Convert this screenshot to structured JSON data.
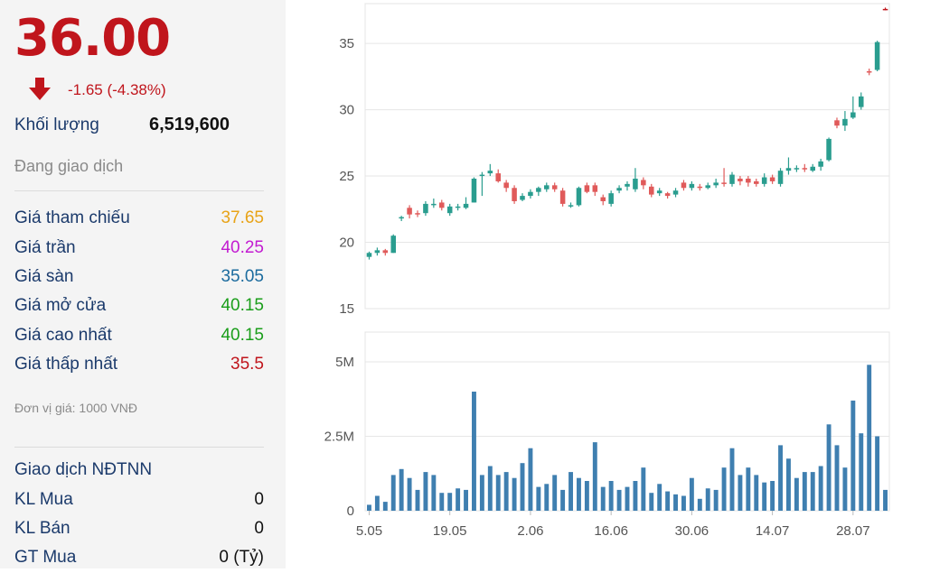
{
  "quote": {
    "price": "36.00",
    "change": "-1.65 (-4.38%)",
    "volume_label": "Khối lượng",
    "volume_value": "6,519,600",
    "status": "Đang giao dịch",
    "arrow_icon": "down-arrow-icon"
  },
  "price_rows": [
    {
      "label": "Giá tham chiếu",
      "value": "37.65",
      "color": "#e8a317"
    },
    {
      "label": "Giá trần",
      "value": "40.25",
      "color": "#c21bd1"
    },
    {
      "label": "Giá sàn",
      "value": "35.05",
      "color": "#1b6b9e"
    },
    {
      "label": "Giá mở cửa",
      "value": "40.15",
      "color": "#1a9e1a"
    },
    {
      "label": "Giá cao nhất",
      "value": "40.15",
      "color": "#1a9e1a"
    },
    {
      "label": "Giá thấp nhất",
      "value": "35.5",
      "color": "#c0151c"
    }
  ],
  "unit_note": "Đơn vị giá: 1000 VNĐ",
  "foreign": {
    "title": "Giao dịch NĐTNN",
    "rows": [
      {
        "label": "KL Mua",
        "value": "0"
      },
      {
        "label": "KL Bán",
        "value": "0"
      },
      {
        "label": "GT Mua",
        "value": "0 (Tỷ)"
      }
    ]
  },
  "colors": {
    "up": "#2a9d8f",
    "down": "#e05a5a",
    "volume": "#3f7fb0",
    "last": "#c0151c"
  },
  "chart_data": [
    {
      "type": "candlestick",
      "y_ticks": [
        "35",
        "30",
        "25",
        "20",
        "15"
      ],
      "ylim": [
        15,
        38
      ],
      "x_ticks": [
        "5.05",
        "19.05",
        "2.06",
        "16.06",
        "30.06",
        "14.07",
        "28.07"
      ],
      "candles": [
        [
          18.9,
          19.2,
          18.7,
          19.3
        ],
        [
          19.2,
          19.4,
          19.0,
          19.6
        ],
        [
          19.4,
          19.2,
          19.0,
          19.5
        ],
        [
          19.2,
          20.5,
          19.2,
          20.6
        ],
        [
          21.8,
          21.9,
          21.6,
          22.0
        ],
        [
          22.6,
          22.1,
          21.8,
          22.8
        ],
        [
          22.2,
          22.1,
          21.9,
          22.4
        ],
        [
          22.2,
          22.9,
          22.0,
          23.1
        ],
        [
          22.8,
          22.9,
          22.6,
          23.3
        ],
        [
          23.0,
          22.6,
          22.4,
          23.2
        ],
        [
          22.2,
          22.7,
          22.0,
          22.9
        ],
        [
          22.6,
          22.7,
          22.4,
          22.9
        ],
        [
          22.6,
          22.9,
          22.5,
          23.4
        ],
        [
          23.0,
          24.8,
          23.0,
          24.9
        ],
        [
          25.0,
          25.1,
          23.5,
          25.3
        ],
        [
          25.2,
          25.4,
          25.0,
          25.9
        ],
        [
          25.2,
          24.6,
          24.5,
          25.5
        ],
        [
          24.5,
          24.1,
          23.8,
          24.7
        ],
        [
          24.1,
          23.1,
          22.9,
          24.3
        ],
        [
          23.2,
          23.5,
          23.1,
          23.7
        ],
        [
          23.5,
          23.8,
          23.3,
          24.0
        ],
        [
          23.8,
          24.1,
          23.5,
          24.2
        ],
        [
          24.0,
          24.3,
          23.8,
          24.5
        ],
        [
          24.3,
          24.0,
          23.8,
          24.5
        ],
        [
          23.9,
          22.9,
          22.7,
          24.1
        ],
        [
          22.8,
          22.8,
          22.6,
          23.0
        ],
        [
          22.8,
          24.1,
          22.7,
          24.2
        ],
        [
          24.3,
          23.8,
          23.7,
          24.5
        ],
        [
          24.3,
          23.8,
          23.5,
          24.5
        ],
        [
          23.4,
          23.1,
          22.8,
          23.6
        ],
        [
          22.9,
          23.7,
          22.7,
          23.9
        ],
        [
          23.9,
          24.1,
          23.7,
          24.3
        ],
        [
          24.2,
          24.4,
          23.9,
          24.6
        ],
        [
          24.0,
          24.8,
          23.8,
          25.6
        ],
        [
          24.7,
          24.3,
          24.0,
          24.9
        ],
        [
          24.2,
          23.6,
          23.4,
          24.4
        ],
        [
          23.7,
          23.9,
          23.5,
          24.1
        ],
        [
          23.7,
          23.5,
          23.3,
          23.8
        ],
        [
          23.6,
          23.9,
          23.4,
          24.1
        ],
        [
          24.5,
          24.1,
          23.9,
          24.7
        ],
        [
          24.1,
          24.4,
          23.9,
          24.6
        ],
        [
          24.2,
          24.1,
          23.9,
          24.4
        ],
        [
          24.1,
          24.3,
          24.0,
          24.5
        ],
        [
          24.3,
          24.5,
          24.1,
          24.8
        ],
        [
          24.5,
          24.4,
          24.2,
          25.6
        ],
        [
          24.4,
          25.1,
          24.2,
          25.3
        ],
        [
          24.8,
          24.6,
          24.3,
          25.0
        ],
        [
          24.8,
          24.5,
          24.2,
          25.0
        ],
        [
          24.6,
          24.4,
          24.2,
          24.8
        ],
        [
          24.4,
          24.9,
          24.2,
          25.2
        ],
        [
          24.9,
          24.6,
          24.4,
          25.1
        ],
        [
          24.4,
          25.4,
          24.2,
          25.6
        ],
        [
          25.4,
          25.6,
          25.1,
          26.4
        ],
        [
          25.5,
          25.6,
          25.3,
          25.8
        ],
        [
          25.6,
          25.5,
          25.3,
          25.9
        ],
        [
          25.4,
          25.7,
          25.3,
          25.9
        ],
        [
          25.7,
          26.1,
          25.4,
          26.3
        ],
        [
          26.2,
          27.8,
          26.1,
          27.9
        ],
        [
          29.2,
          28.8,
          28.6,
          29.4
        ],
        [
          28.8,
          29.3,
          28.4,
          29.9
        ],
        [
          29.4,
          29.8,
          29.3,
          31.0
        ],
        [
          30.2,
          31.0,
          30.0,
          31.3
        ],
        [
          32.9,
          32.8,
          32.6,
          33.1
        ],
        [
          33.0,
          35.1,
          32.9,
          35.2
        ],
        [
          37.6,
          37.5,
          37.5,
          37.7
        ]
      ],
      "last_candle_color": "last"
    },
    {
      "type": "bar",
      "name": "volume",
      "y_ticks": [
        "5M",
        "2.5M",
        "0"
      ],
      "ylim": [
        0,
        6000000
      ],
      "values": [
        200000,
        500000,
        300000,
        1200000,
        1400000,
        1100000,
        700000,
        1300000,
        1200000,
        600000,
        600000,
        750000,
        700000,
        4000000,
        1200000,
        1500000,
        1200000,
        1300000,
        1100000,
        1600000,
        2100000,
        800000,
        900000,
        1200000,
        700000,
        1300000,
        1100000,
        1000000,
        2300000,
        800000,
        1000000,
        700000,
        800000,
        1000000,
        1450000,
        600000,
        900000,
        650000,
        550000,
        500000,
        1100000,
        400000,
        750000,
        700000,
        1450000,
        2100000,
        1200000,
        1450000,
        1200000,
        950000,
        1000000,
        2200000,
        1750000,
        1100000,
        1300000,
        1300000,
        1500000,
        2900000,
        2200000,
        1450000,
        3700000,
        2600000,
        4900000,
        2500000,
        700000
      ]
    }
  ]
}
